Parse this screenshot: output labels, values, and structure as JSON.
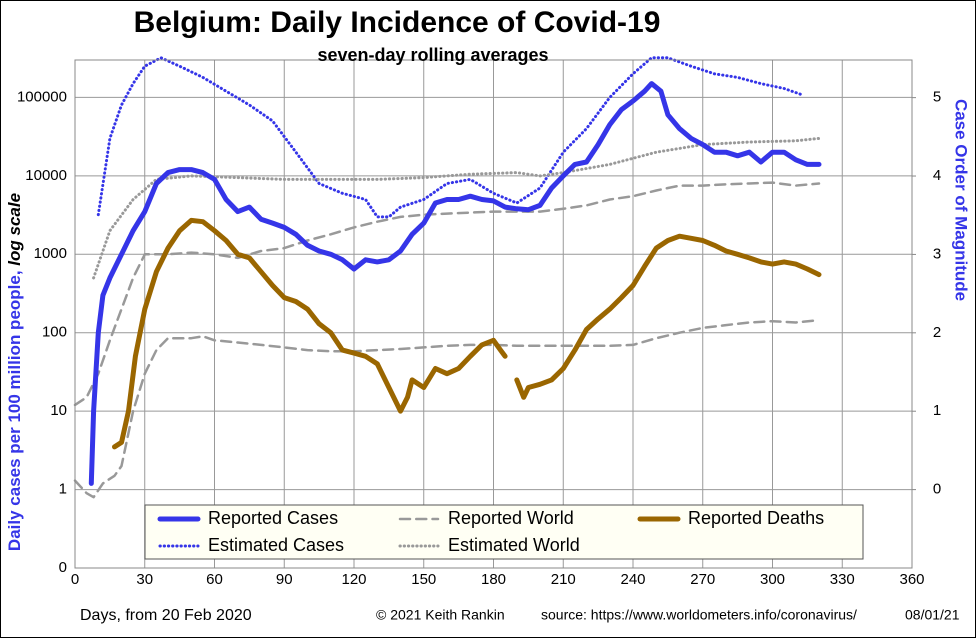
{
  "chart_data": {
    "type": "line",
    "title": "Belgium: Daily Incidence of Covid-19",
    "subtitle": "seven-day rolling averages",
    "ylabel": "Daily cases per 100 million people, ",
    "ylabel_note": "log scale",
    "y2label": "Case Order of Magnitude",
    "xlabel": "Days, from 20 Feb 2020",
    "credit": "© 2021  Keith Rankin",
    "source": "source:  https://www.worldometers.info/coronavirus/",
    "date": "08/01/21",
    "log_scale": true,
    "grid": true,
    "xlim": [
      0,
      360
    ],
    "xticks": [
      0,
      30,
      60,
      90,
      120,
      150,
      180,
      210,
      240,
      270,
      300,
      330,
      360
    ],
    "ylim": [
      0.1,
      300000
    ],
    "yticks": [
      {
        "value": 0.1,
        "label": "0"
      },
      1,
      10,
      100,
      1000,
      10000,
      100000
    ],
    "y2lim": [
      -1,
      5.48
    ],
    "y2ticks": [
      0,
      1,
      2,
      3,
      4,
      5
    ],
    "series": [
      {
        "name": "Reported Cases",
        "color": "#3535e8",
        "style": "solid",
        "width": 5,
        "x": [
          7,
          8,
          10,
          12,
          15,
          20,
          25,
          30,
          35,
          40,
          45,
          50,
          55,
          60,
          65,
          70,
          75,
          80,
          85,
          90,
          95,
          100,
          105,
          110,
          115,
          120,
          125,
          130,
          135,
          140,
          145,
          150,
          155,
          160,
          165,
          170,
          175,
          180,
          185,
          190,
          195,
          200,
          205,
          210,
          215,
          220,
          225,
          230,
          235,
          240,
          245,
          248,
          252,
          255,
          260,
          265,
          270,
          275,
          280,
          285,
          290,
          295,
          300,
          305,
          310,
          315,
          320
        ],
        "values": [
          1.2,
          10,
          100,
          300,
          500,
          1000,
          2000,
          3500,
          8000,
          11000,
          12000,
          12000,
          11000,
          9000,
          5000,
          3500,
          4000,
          2800,
          2500,
          2200,
          1800,
          1300,
          1100,
          1000,
          850,
          650,
          850,
          800,
          850,
          1100,
          1800,
          2500,
          4500,
          5000,
          5000,
          5500,
          5000,
          4800,
          4000,
          3800,
          3700,
          4200,
          7000,
          10000,
          14000,
          15000,
          25000,
          45000,
          70000,
          90000,
          120000,
          150000,
          120000,
          60000,
          40000,
          30000,
          25000,
          20000,
          20000,
          18000,
          20000,
          15000,
          20000,
          20000,
          16000,
          14000,
          14000
        ]
      },
      {
        "name": "Estimated Cases",
        "color": "#3535e8",
        "style": "dotted",
        "width": 3,
        "x": [
          10,
          15,
          20,
          25,
          30,
          37,
          45,
          55,
          65,
          75,
          85,
          95,
          105,
          115,
          125,
          130,
          135,
          140,
          150,
          160,
          170,
          180,
          190,
          200,
          210,
          220,
          230,
          240,
          248,
          255,
          265,
          275,
          285,
          295,
          305,
          312
        ],
        "values": [
          3200,
          30000,
          80000,
          150000,
          250000,
          320000,
          250000,
          180000,
          120000,
          80000,
          50000,
          20000,
          8000,
          6000,
          5000,
          3000,
          3000,
          4000,
          5000,
          8000,
          9000,
          6000,
          4500,
          7000,
          20000,
          40000,
          100000,
          200000,
          320000,
          320000,
          250000,
          200000,
          180000,
          150000,
          130000,
          110000
        ]
      },
      {
        "name": "Reported World",
        "color": "#999999",
        "style": "dashed",
        "width": 2.5,
        "x": [
          0,
          5,
          10,
          15,
          20,
          25,
          30,
          40,
          50,
          60,
          70,
          80,
          90,
          100,
          110,
          120,
          130,
          140,
          150,
          160,
          170,
          180,
          190,
          200,
          210,
          220,
          230,
          240,
          250,
          260,
          270,
          280,
          290,
          300,
          310,
          320
        ],
        "values": [
          12,
          15,
          30,
          80,
          200,
          500,
          1000,
          1000,
          1050,
          1000,
          900,
          1100,
          1200,
          1500,
          1800,
          2200,
          2600,
          3000,
          3200,
          3300,
          3400,
          3500,
          3500,
          3500,
          3800,
          4200,
          5000,
          5500,
          6500,
          7500,
          7500,
          7800,
          8000,
          8200,
          7500,
          8000
        ]
      },
      {
        "name": "Estimated World",
        "color": "#999999",
        "style": "dotted",
        "width": 3,
        "x": [
          8,
          15,
          25,
          35,
          50,
          70,
          90,
          110,
          130,
          150,
          170,
          190,
          200,
          210,
          230,
          250,
          270,
          290,
          310,
          320
        ],
        "values": [
          500,
          2000,
          5000,
          9000,
          10000,
          9500,
          9000,
          9000,
          9000,
          9500,
          10500,
          11000,
          10000,
          11000,
          14000,
          20000,
          25000,
          27000,
          28000,
          30000
        ]
      },
      {
        "name": "Reported Deaths",
        "color": "#9a6600",
        "style": "solid",
        "width": 5,
        "x": [
          17,
          20,
          23,
          26,
          30,
          35,
          40,
          45,
          50,
          55,
          60,
          65,
          70,
          75,
          80,
          85,
          90,
          95,
          100,
          105,
          110,
          115,
          120,
          125,
          130,
          135,
          140,
          143,
          145,
          150,
          155,
          160,
          165,
          170,
          175,
          180,
          183,
          185,
          188,
          190,
          193,
          195,
          200,
          205,
          210,
          215,
          220,
          225,
          230,
          235,
          240,
          245,
          250,
          255,
          260,
          265,
          270,
          275,
          280,
          285,
          290,
          295,
          300,
          305,
          310,
          315,
          320
        ],
        "values": [
          3.5,
          4,
          10,
          50,
          200,
          600,
          1200,
          2000,
          2700,
          2600,
          2000,
          1500,
          1000,
          900,
          600,
          400,
          280,
          250,
          200,
          130,
          100,
          60,
          55,
          50,
          40,
          20,
          10,
          15,
          25,
          20,
          35,
          30,
          35,
          50,
          70,
          80,
          60,
          50,
          null,
          25,
          15,
          20,
          22,
          25,
          35,
          60,
          110,
          150,
          200,
          280,
          400,
          700,
          1200,
          1500,
          1700,
          1600,
          1500,
          1300,
          1100,
          1000,
          900,
          800,
          750,
          800,
          750,
          650,
          550
        ]
      },
      {
        "color": "#999999",
        "style": "dashed",
        "width": 2.5,
        "x": [
          0,
          5,
          8,
          12,
          17,
          20,
          25,
          30,
          35,
          40,
          50,
          55,
          60,
          70,
          80,
          90,
          100,
          110,
          120,
          130,
          140,
          150,
          160,
          170,
          180,
          190,
          200,
          210,
          220,
          230,
          240,
          250,
          260,
          270,
          280,
          290,
          300,
          310,
          320
        ],
        "values": [
          1.3,
          0.9,
          0.8,
          1.2,
          1.5,
          2,
          10,
          30,
          60,
          85,
          85,
          90,
          80,
          75,
          70,
          65,
          60,
          58,
          58,
          60,
          62,
          65,
          68,
          70,
          70,
          68,
          68,
          68,
          68,
          68,
          70,
          85,
          100,
          115,
          125,
          135,
          140,
          135,
          145
        ]
      }
    ]
  }
}
